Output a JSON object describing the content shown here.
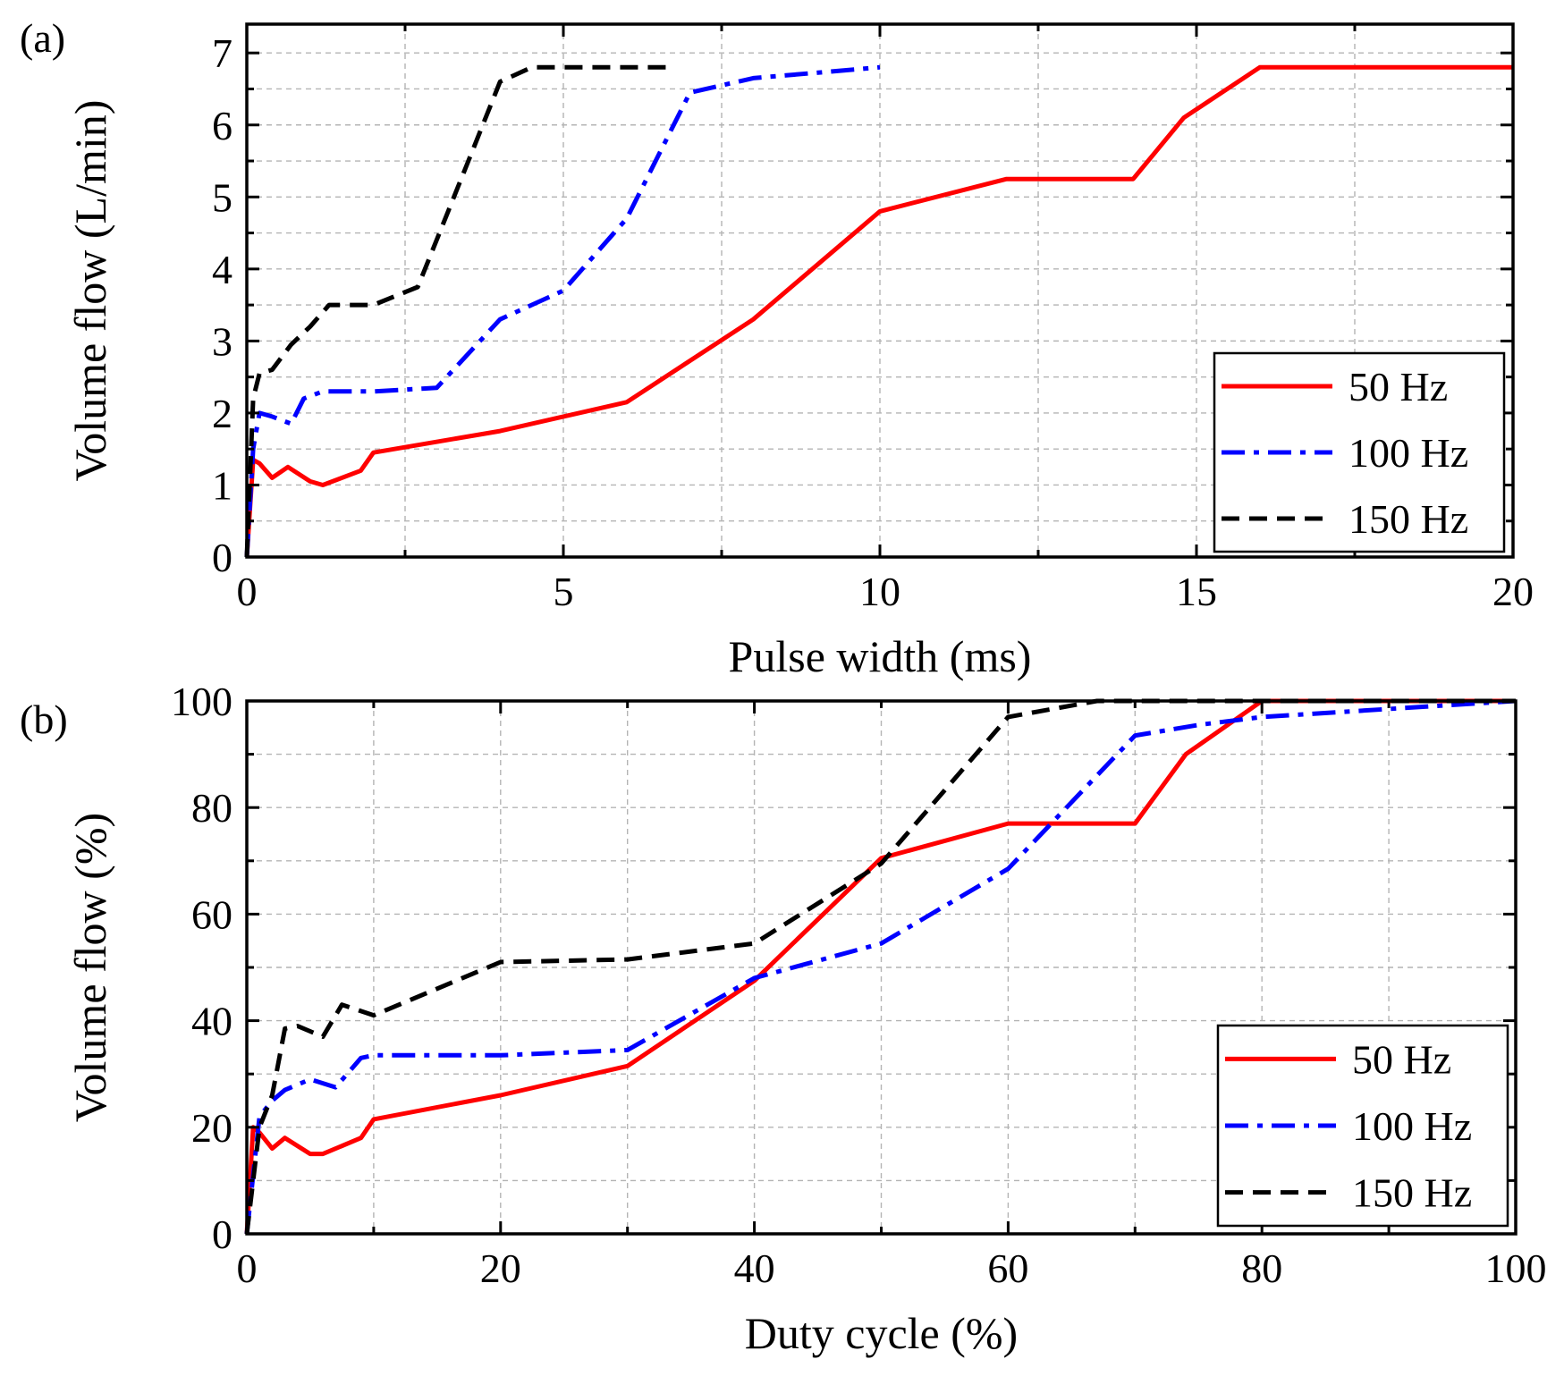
{
  "figure": {
    "colors": {
      "red": "#ff0000",
      "blue": "#0000ff",
      "black": "#000000",
      "grid": "#b4b4b4"
    }
  },
  "chart_data": [
    {
      "panel_label": "(a)",
      "type": "line",
      "xlabel": "Pulse width (ms)",
      "ylabel": "Volume flow (L/min)",
      "xlim": [
        0,
        20
      ],
      "ylim": [
        0,
        7.4
      ],
      "xticks": [
        0,
        5,
        10,
        15,
        20
      ],
      "yticks": [
        0,
        1,
        2,
        3,
        4,
        5,
        6,
        7
      ],
      "grid": true,
      "legend_position": "bottom-right",
      "series": [
        {
          "name": "50 Hz",
          "color": "#ff0000",
          "style": "solid",
          "x": [
            0,
            0.1,
            0.2,
            0.4,
            0.65,
            1.0,
            1.2,
            1.8,
            2.0,
            4.0,
            6.0,
            8.0,
            10.0,
            12.0,
            14.0,
            14.8,
            16.0,
            20.0
          ],
          "y": [
            0,
            1.35,
            1.3,
            1.1,
            1.25,
            1.05,
            1.0,
            1.2,
            1.45,
            1.75,
            2.15,
            3.3,
            4.8,
            5.25,
            5.25,
            6.1,
            6.8,
            6.8
          ]
        },
        {
          "name": "100 Hz",
          "color": "#0000ff",
          "style": "dashdot",
          "x": [
            0,
            0.1,
            0.2,
            0.4,
            0.7,
            0.9,
            1.2,
            2.0,
            3.0,
            4.0,
            5.0,
            6.0,
            7.0,
            7.5,
            8.0,
            10.0
          ],
          "y": [
            0,
            1.5,
            2.0,
            1.95,
            1.85,
            2.2,
            2.3,
            2.3,
            2.35,
            3.3,
            3.7,
            4.7,
            6.45,
            6.55,
            6.65,
            6.8
          ]
        },
        {
          "name": "150 Hz",
          "color": "#000000",
          "style": "dashed",
          "x": [
            0,
            0.1,
            0.2,
            0.4,
            0.7,
            1.0,
            1.3,
            2.0,
            2.7,
            3.5,
            4.0,
            4.5,
            5.0,
            6.7
          ],
          "y": [
            0,
            2.2,
            2.55,
            2.6,
            2.95,
            3.2,
            3.5,
            3.5,
            3.75,
            5.5,
            6.6,
            6.8,
            6.8,
            6.8
          ]
        }
      ]
    },
    {
      "panel_label": "(b)",
      "type": "line",
      "xlabel": "Duty cycle (%)",
      "ylabel": "Volume flow (%)",
      "xlim": [
        0,
        100
      ],
      "ylim": [
        0,
        100
      ],
      "xticks": [
        0,
        20,
        40,
        60,
        80,
        100
      ],
      "yticks": [
        0,
        20,
        40,
        60,
        80,
        100
      ],
      "grid": true,
      "legend_position": "bottom-right",
      "series": [
        {
          "name": "50 Hz",
          "color": "#ff0000",
          "style": "solid",
          "x": [
            0,
            0.5,
            1.0,
            2.0,
            3.0,
            5.0,
            6.0,
            9.0,
            10.0,
            20.0,
            30.0,
            40.0,
            50.0,
            60.0,
            70.0,
            74.0,
            80.0,
            100.0
          ],
          "y": [
            0,
            20,
            19,
            16,
            18,
            15,
            15,
            18,
            21.5,
            26,
            31.5,
            47.5,
            70.5,
            77,
            77,
            90,
            100,
            100
          ]
        },
        {
          "name": "100 Hz",
          "color": "#0000ff",
          "style": "dashdot",
          "x": [
            0,
            1.0,
            2.0,
            3.0,
            5.0,
            7.0,
            9.0,
            10.0,
            20.0,
            30.0,
            40.0,
            50.0,
            60.0,
            70.0,
            75.0,
            80.0,
            100.0
          ],
          "y": [
            0,
            22,
            25,
            27,
            29,
            27.5,
            33,
            33.5,
            33.5,
            34.5,
            48,
            54.5,
            68.5,
            93.5,
            95.5,
            97,
            100
          ]
        },
        {
          "name": "150 Hz",
          "color": "#000000",
          "style": "dashed",
          "x": [
            0,
            1.0,
            2.0,
            3.0,
            4.0,
            6.0,
            7.5,
            10.0,
            15.0,
            20.0,
            30.0,
            40.0,
            50.0,
            60.0,
            67.0,
            100.0
          ],
          "y": [
            0,
            20,
            26,
            38.5,
            39,
            37,
            43,
            41,
            46,
            51,
            51.5,
            54.5,
            69.5,
            97,
            100,
            100
          ]
        }
      ]
    }
  ]
}
